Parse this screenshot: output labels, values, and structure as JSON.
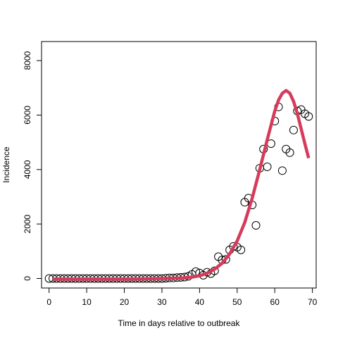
{
  "chart_data": {
    "type": "scatter",
    "title": "",
    "xlabel": "Time in days relative to outbreak",
    "ylabel": "Incidence",
    "xlim": [
      -2,
      71
    ],
    "ylim": [
      -350,
      8700
    ],
    "xticks": [
      0,
      10,
      20,
      30,
      40,
      50,
      60,
      70
    ],
    "yticks": [
      0,
      2000,
      4000,
      6000,
      8000
    ],
    "grid": false,
    "legend": "none",
    "series": [
      {
        "kind": "points",
        "marker": "open-circle",
        "color": "#000000",
        "x": [
          0,
          1,
          2,
          3,
          4,
          5,
          6,
          7,
          8,
          9,
          10,
          11,
          12,
          13,
          14,
          15,
          16,
          17,
          18,
          19,
          20,
          21,
          22,
          23,
          24,
          25,
          26,
          27,
          28,
          29,
          30,
          31,
          32,
          33,
          34,
          35,
          36,
          37,
          38,
          39,
          40,
          41,
          42,
          43,
          44,
          45,
          46,
          47,
          48,
          49,
          50,
          51,
          52,
          53,
          54,
          55,
          56,
          57,
          58,
          59,
          60,
          61,
          62,
          63,
          64,
          65,
          66,
          67,
          68,
          69
        ],
        "y": [
          0,
          0,
          0,
          0,
          0,
          0,
          0,
          0,
          0,
          0,
          0,
          0,
          0,
          0,
          0,
          0,
          0,
          0,
          0,
          0,
          0,
          0,
          0,
          0,
          0,
          0,
          0,
          0,
          0,
          0,
          0,
          10,
          20,
          20,
          30,
          40,
          50,
          80,
          150,
          250,
          200,
          120,
          230,
          180,
          280,
          800,
          680,
          700,
          1050,
          1180,
          1150,
          1050,
          2800,
          2950,
          2700,
          1950,
          4050,
          4750,
          4100,
          4950,
          5780,
          6300,
          3960,
          4750,
          4620,
          5450,
          6150,
          6200,
          6050,
          5950
        ]
      },
      {
        "kind": "line",
        "color": "#d63b5b",
        "x": [
          1,
          5,
          10,
          15,
          20,
          25,
          30,
          35,
          38,
          40,
          42,
          44,
          46,
          48,
          50,
          52,
          54,
          56,
          58,
          60,
          61,
          62,
          63,
          64,
          65,
          66,
          67,
          68,
          69
        ],
        "y": [
          -20,
          -20,
          -20,
          -20,
          -20,
          -15,
          0,
          20,
          50,
          100,
          190,
          340,
          560,
          900,
          1380,
          2050,
          2950,
          4000,
          5100,
          6150,
          6550,
          6800,
          6900,
          6800,
          6500,
          6050,
          5500,
          4950,
          4420
        ]
      }
    ]
  }
}
